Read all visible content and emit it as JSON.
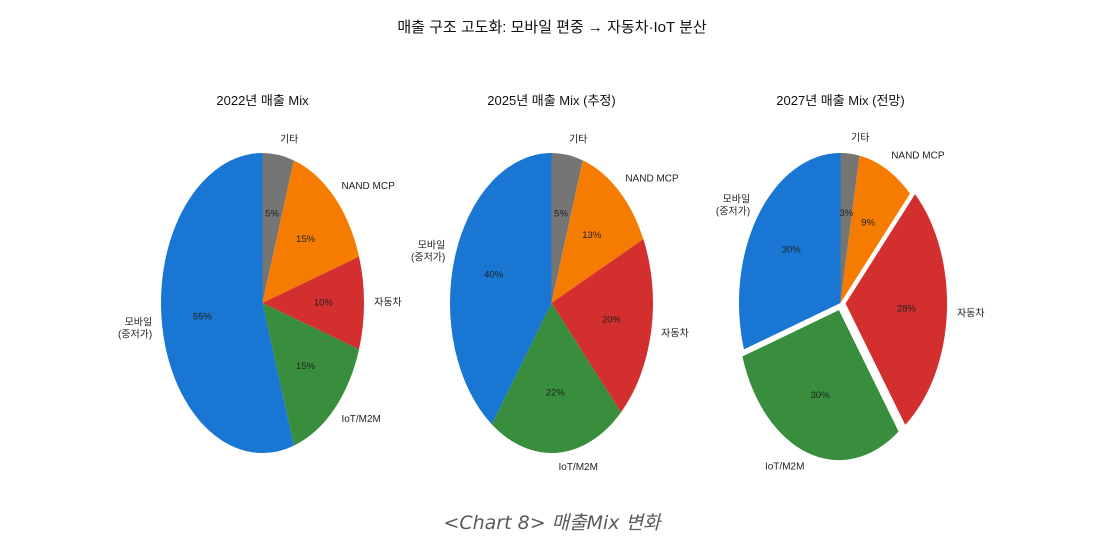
{
  "title": "매출 구조 고도화: 모바일 편중 → 자동차·IoT 분산",
  "caption": "<Chart 8> 매출Mix 변화",
  "colors": {
    "mobile": "#1976D2",
    "iot": "#388E3C",
    "auto": "#D32F2F",
    "nand": "#F57C00",
    "other": "#757575"
  },
  "chart_data": [
    {
      "type": "pie",
      "title": "2022년 매출 Mix",
      "labels": [
        "모바일\n(중저가)",
        "IoT/M2M",
        "자동차",
        "NAND MCP",
        "기타"
      ],
      "values": [
        55,
        15,
        10,
        15,
        5
      ],
      "explode": [
        0,
        0,
        0,
        0,
        0
      ],
      "colors": [
        "#1976D2",
        "#388E3C",
        "#D32F2F",
        "#F57C00",
        "#757575"
      ],
      "startangle": 90,
      "counterclock": true,
      "unit": "%"
    },
    {
      "type": "pie",
      "title": "2025년 매출 Mix (추정)",
      "labels": [
        "모바일\n(중저가)",
        "IoT/M2M",
        "자동차",
        "NAND MCP",
        "기타"
      ],
      "values": [
        40,
        22,
        20,
        13,
        5
      ],
      "explode": [
        0,
        0,
        0,
        0,
        0
      ],
      "colors": [
        "#1976D2",
        "#388E3C",
        "#D32F2F",
        "#F57C00",
        "#757575"
      ],
      "startangle": 90,
      "counterclock": true,
      "unit": "%"
    },
    {
      "type": "pie",
      "title": "2027년 매출 Mix (전망)",
      "labels": [
        "모바일\n(중저가)",
        "IoT/M2M",
        "자동차",
        "NAND MCP",
        "기타"
      ],
      "values": [
        30,
        30,
        28,
        9,
        3
      ],
      "explode": [
        0,
        0.05,
        0.05,
        0,
        0
      ],
      "colors": [
        "#1976D2",
        "#388E3C",
        "#D32F2F",
        "#F57C00",
        "#757575"
      ],
      "startangle": 90,
      "counterclock": true,
      "unit": "%"
    }
  ]
}
